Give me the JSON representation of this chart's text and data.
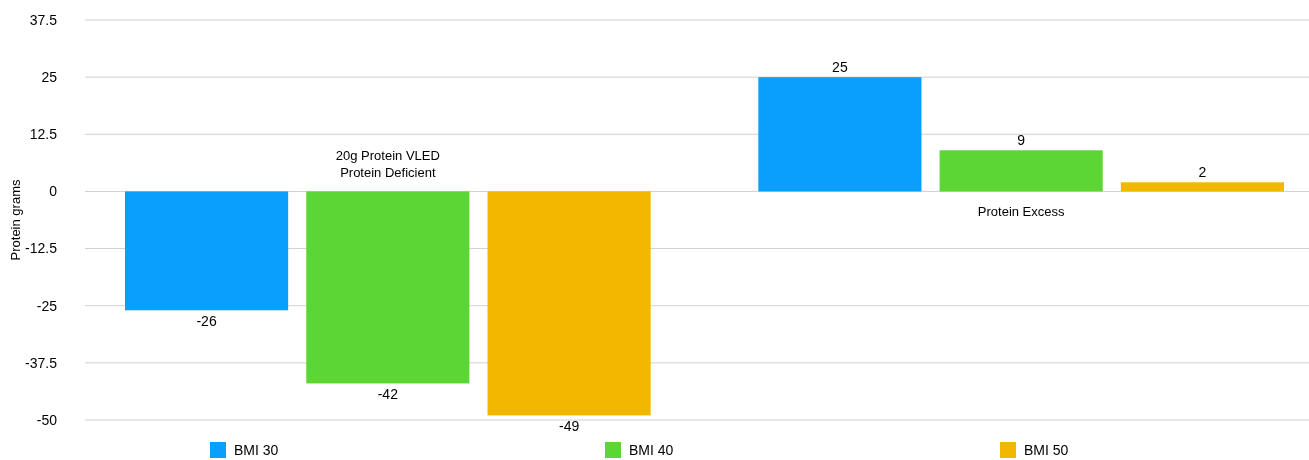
{
  "chart_data": {
    "type": "bar",
    "ylabel": "Protein grams",
    "categories": [
      "20g Protein VLED Protein Deficient",
      "Protein Excess"
    ],
    "series": [
      {
        "name": "BMI 30",
        "color": "#0a9ffc",
        "values": [
          -26,
          25
        ]
      },
      {
        "name": "BMI 40",
        "color": "#5cd634",
        "values": [
          -42,
          9
        ]
      },
      {
        "name": "BMI 50",
        "color": "#f3b700",
        "values": [
          -49,
          2
        ]
      }
    ],
    "ylim": [
      -50,
      37.5
    ],
    "yticks": [
      -50,
      -37.5,
      -25,
      -12.5,
      0,
      12.5,
      25,
      37.5
    ],
    "grid": "y",
    "legend": "bottom",
    "data_labels": true
  }
}
